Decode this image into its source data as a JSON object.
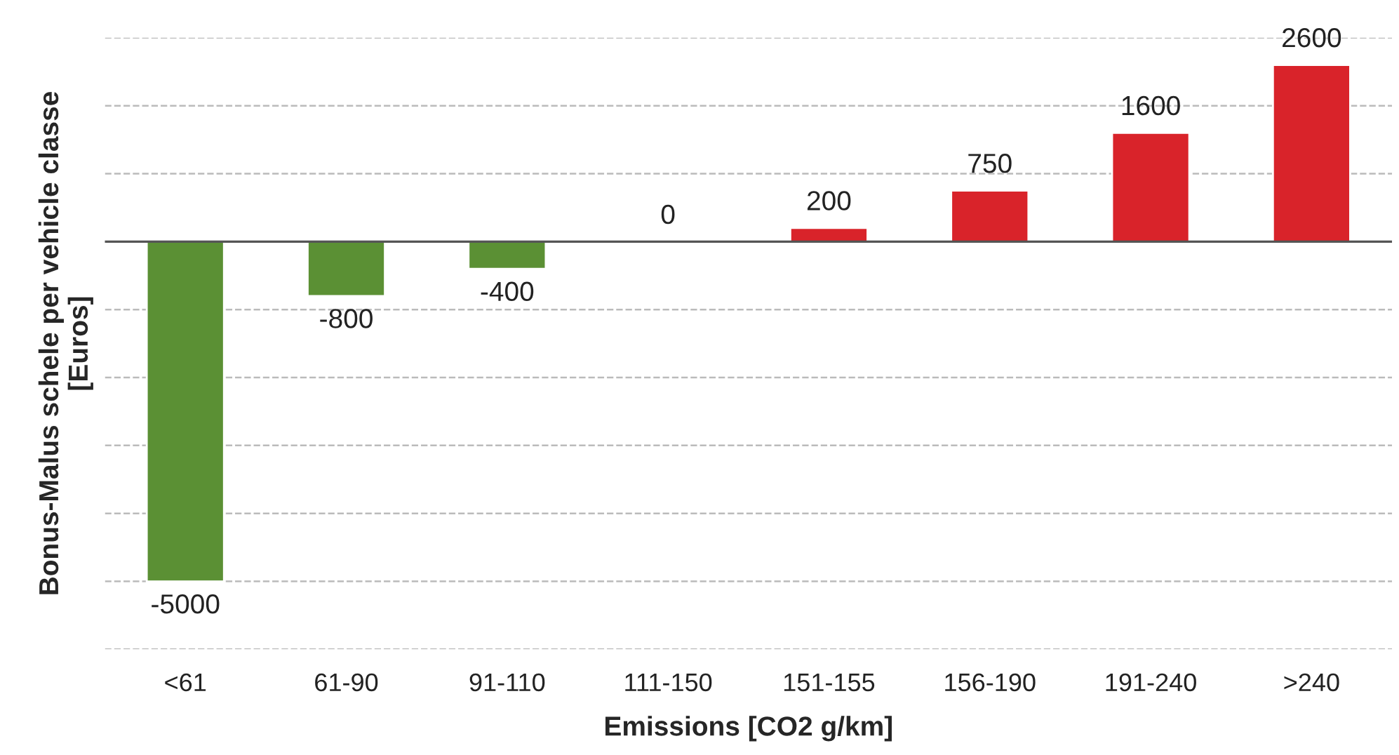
{
  "chart_data": {
    "type": "bar",
    "xlabel": "Emissions [CO2 g/km]",
    "ylabel": "Bonus-Malus schele per vehicle classe\n[Euros]",
    "categories": [
      "<61",
      "61-90",
      "91-110",
      "111-150",
      "151-155",
      "156-190",
      "191-240",
      ">240"
    ],
    "values": [
      -5000,
      -800,
      -400,
      0,
      200,
      750,
      1600,
      2600
    ],
    "colors": [
      "#5b9034",
      "#5b9034",
      "#5b9034",
      null,
      "#d9232a",
      "#d9232a",
      "#d9232a",
      "#d9232a"
    ],
    "data_labels": true,
    "ylim": [
      -6000,
      3000
    ],
    "yticks": [
      {
        "value": -6000,
        "label": null
      },
      {
        "value": -5000,
        "label": null
      },
      {
        "value": -4000,
        "label": null
      },
      {
        "value": -3000,
        "label": null
      },
      {
        "value": -2000,
        "label": null
      },
      {
        "value": -1000,
        "label": null
      },
      {
        "value": 0,
        "label": null
      },
      {
        "value": 1000,
        "label": null
      },
      {
        "value": 2000,
        "label": null
      },
      {
        "value": 3000,
        "label": null
      }
    ],
    "tick_labels": "x",
    "grid": "y",
    "ref_lines": [
      {
        "axis": "y",
        "value": 0,
        "color": "#555555"
      }
    ]
  }
}
